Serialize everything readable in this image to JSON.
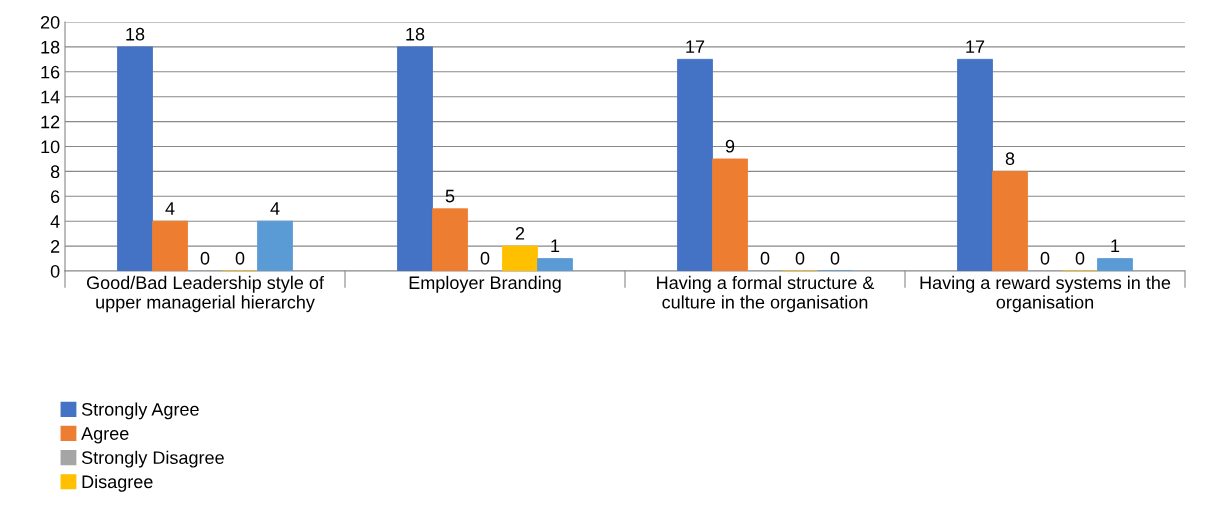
{
  "chart_data": {
    "type": "bar",
    "categories": [
      "Good/Bad Leadership style of upper managerial hierarchy",
      "Employer Branding",
      "Having a formal structure & culture in the organisation",
      "Having a reward systems in the organisation"
    ],
    "series": [
      {
        "name": "Strongly Agree",
        "color": "#4472c4",
        "values": [
          18,
          18,
          17,
          17
        ]
      },
      {
        "name": "Agree",
        "color": "#ed7d31",
        "values": [
          4,
          5,
          9,
          8
        ]
      },
      {
        "name": "Strongly Disagree",
        "color": "#a5a5a5",
        "values": [
          0,
          0,
          0,
          0
        ]
      },
      {
        "name": "Disagree",
        "color": "#ffc000",
        "values": [
          0,
          2,
          0,
          0
        ]
      },
      {
        "color": "#5b9bd5",
        "values": [
          4,
          1,
          0,
          1
        ]
      }
    ],
    "ylim": [
      0,
      20
    ],
    "yticks": [
      0,
      2,
      4,
      6,
      8,
      10,
      12,
      14,
      16,
      18,
      20
    ],
    "grid": "y",
    "data_labels": true,
    "legend": "bottom left"
  }
}
